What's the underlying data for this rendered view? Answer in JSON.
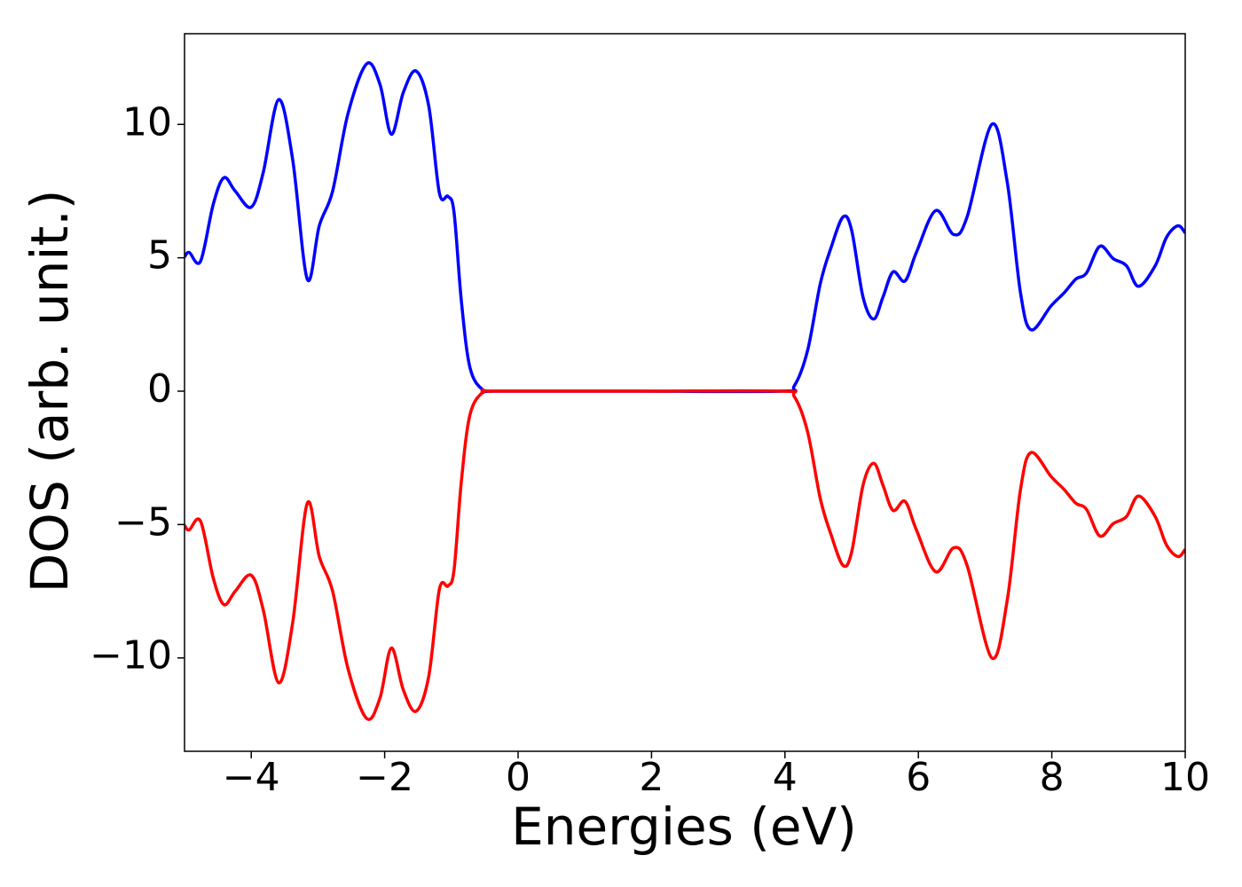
{
  "chart_data": {
    "type": "line",
    "xlabel": "Energies (eV)",
    "ylabel": "DOS (arb. unit.)",
    "x": [
      -5,
      -4.93,
      -4.76,
      -4.57,
      -4.41,
      -4.24,
      -4.0,
      -3.82,
      -3.59,
      -3.38,
      -3.16,
      -2.98,
      -2.78,
      -2.55,
      -2.27,
      -2.07,
      -1.9,
      -1.72,
      -1.53,
      -1.34,
      -1.18,
      -1.05,
      -0.96,
      -0.85,
      -0.72,
      -0.52,
      -0.32,
      1.8,
      3.94,
      4.14,
      4.34,
      4.53,
      4.69,
      4.87,
      5.0,
      5.17,
      5.33,
      5.47,
      5.62,
      5.8,
      5.97,
      6.26,
      6.53,
      6.73,
      7.1,
      7.33,
      7.53,
      7.69,
      7.99,
      8.19,
      8.36,
      8.52,
      8.72,
      8.92,
      9.12,
      9.3,
      9.55,
      9.72,
      9.89,
      10
    ],
    "series": [
      {
        "color": "#0000ff",
        "values": [
          5.03,
          5.2,
          4.87,
          7.0,
          8.0,
          7.5,
          6.9,
          8.2,
          10.93,
          8.7,
          4.2,
          6.2,
          7.5,
          10.4,
          12.27,
          11.5,
          9.63,
          11.2,
          12.0,
          10.7,
          7.43,
          7.3,
          6.7,
          3.37,
          0.87,
          0.03,
          0,
          0,
          0,
          0.2,
          1.53,
          4.03,
          5.37,
          6.53,
          6.03,
          3.53,
          2.7,
          3.53,
          4.47,
          4.13,
          5.2,
          6.77,
          5.87,
          6.53,
          10.0,
          7.87,
          3.7,
          2.3,
          3.2,
          3.7,
          4.2,
          4.43,
          5.43,
          4.97,
          4.7,
          3.93,
          4.7,
          5.77,
          6.2,
          5.93
        ]
      },
      {
        "color": "#ff0000",
        "values": [
          -5.03,
          -5.2,
          -4.87,
          -7.0,
          -8.0,
          -7.5,
          -6.9,
          -8.2,
          -10.93,
          -8.7,
          -4.2,
          -6.2,
          -7.5,
          -10.4,
          -12.27,
          -11.5,
          -9.63,
          -11.2,
          -12.0,
          -10.7,
          -7.43,
          -7.3,
          -6.7,
          -3.37,
          -0.87,
          -0.03,
          0,
          0,
          0,
          -0.2,
          -1.53,
          -4.03,
          -5.37,
          -6.53,
          -6.03,
          -3.53,
          -2.7,
          -3.53,
          -4.47,
          -4.13,
          -5.2,
          -6.77,
          -5.87,
          -6.53,
          -10.0,
          -7.87,
          -3.7,
          -2.3,
          -3.2,
          -3.7,
          -4.2,
          -4.43,
          -5.43,
          -4.97,
          -4.7,
          -3.93,
          -4.7,
          -5.77,
          -6.2,
          -5.93
        ]
      }
    ],
    "xlim": [
      -5,
      10
    ],
    "xticks": [
      {
        "value": -4,
        "label": "−4"
      },
      {
        "value": -2,
        "label": "−2"
      },
      0,
      2,
      4,
      6,
      8,
      10
    ],
    "ylim": [
      -13.5,
      13.4
    ],
    "yticks": [
      {
        "value": -10,
        "label": "−10"
      },
      {
        "value": -5,
        "label": "−5"
      },
      0,
      5,
      10
    ],
    "grid": false
  }
}
